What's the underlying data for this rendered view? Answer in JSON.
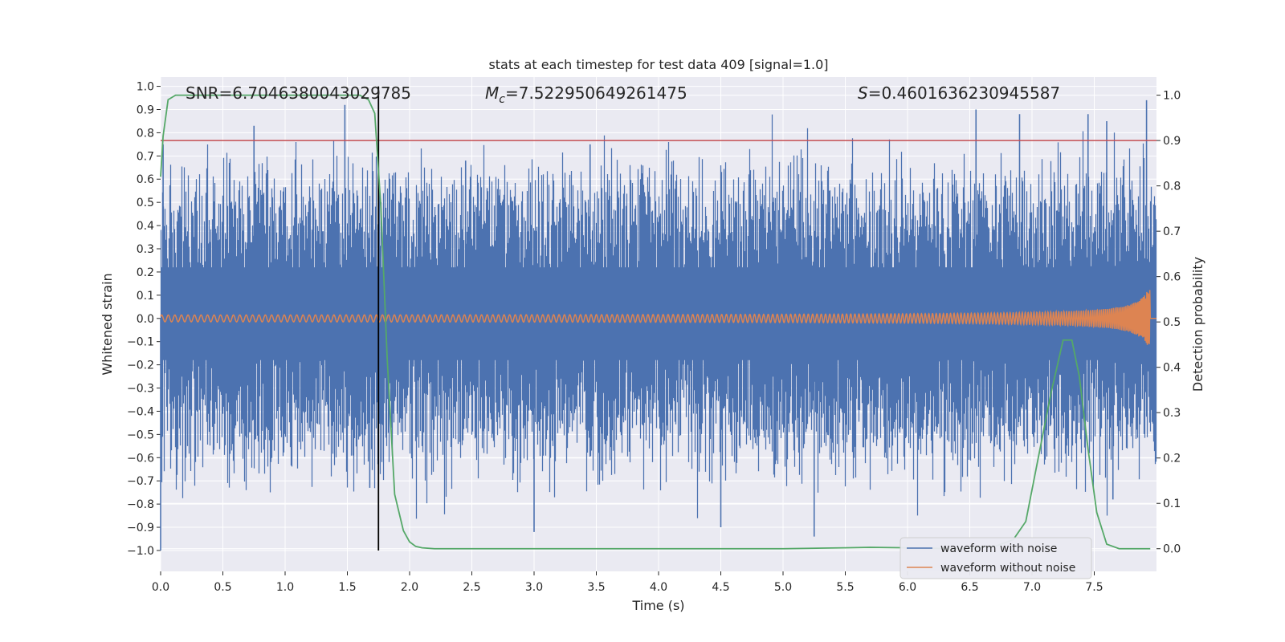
{
  "chart_data": {
    "type": "line",
    "title": "stats at each timestep for test data 409 [signal=1.0]",
    "xlabel": "Time (s)",
    "ylabel_left": "Whitened strain",
    "ylabel_right": "Detection probability",
    "xlim": [
      0.0,
      8.0
    ],
    "ylim_left": [
      -1.09,
      1.04
    ],
    "ylim_right": [
      -0.05,
      1.04
    ],
    "x_ticks": [
      "0.0",
      "0.5",
      "1.0",
      "1.5",
      "2.0",
      "2.5",
      "3.0",
      "3.5",
      "4.0",
      "4.5",
      "5.0",
      "5.5",
      "6.0",
      "6.5",
      "7.0",
      "7.5"
    ],
    "y_left_ticks": [
      "1.0",
      "0.9",
      "0.8",
      "0.7",
      "0.6",
      "0.5",
      "0.4",
      "0.3",
      "0.2",
      "0.1",
      "0.0",
      "−0.1",
      "−0.2",
      "−0.3",
      "−0.4",
      "−0.5",
      "−0.6",
      "−0.7",
      "−0.8",
      "−0.9",
      "−1.0"
    ],
    "y_right_ticks": [
      "1.0",
      "0.9",
      "0.8",
      "0.7",
      "0.6",
      "0.5",
      "0.4",
      "0.3",
      "0.2",
      "0.1",
      "0.0"
    ],
    "annotations": {
      "snr": "SNR=6.7046380043029785",
      "mc_label": "M",
      "mc_sub": "c",
      "mc_value": "=7.522950649261475",
      "s_label": "S",
      "s_value": "=0.4601636230945587"
    },
    "threshold": {
      "value": 0.9,
      "axis": "right",
      "color": "#c44e52"
    },
    "marker_time": 1.75,
    "series": [
      {
        "name": "waveform with noise",
        "color": "#4c72b0",
        "axis": "left",
        "envelope": {
          "typical_upper": 0.45,
          "typical_lower": -0.45,
          "max": 0.94,
          "min": -1.0
        },
        "spikes": [
          [
            0.0,
            -1.0
          ],
          [
            0.02,
            0.75
          ],
          [
            0.75,
            0.83
          ],
          [
            1.48,
            0.92
          ],
          [
            1.68,
            -0.73
          ],
          [
            2.45,
            0.68
          ],
          [
            3.0,
            -0.92
          ],
          [
            3.45,
            0.75
          ],
          [
            4.5,
            -0.9
          ],
          [
            5.25,
            -0.94
          ],
          [
            6.55,
            0.9
          ],
          [
            6.9,
            0.88
          ],
          [
            7.45,
            0.88
          ],
          [
            7.92,
            0.94
          ],
          [
            7.65,
            -0.78
          ],
          [
            7.6,
            0.85
          ]
        ]
      },
      {
        "name": "waveform without noise",
        "color": "#dd8452",
        "axis": "left",
        "start_amplitude": 0.012,
        "end_amplitude": 0.15,
        "end_time": 7.95
      },
      {
        "name": "detection probability",
        "color": "#55a868",
        "axis": "right",
        "x": [
          0.0,
          0.02,
          0.06,
          0.12,
          0.3,
          1.0,
          1.6,
          1.67,
          1.72,
          1.77,
          1.82,
          1.88,
          1.95,
          2.0,
          2.05,
          2.1,
          2.2,
          3.0,
          4.0,
          5.0,
          5.5,
          5.7,
          6.0,
          6.4,
          6.7,
          6.85,
          6.95,
          7.05,
          7.15,
          7.25,
          7.32,
          7.38,
          7.45,
          7.52,
          7.6,
          7.7,
          7.95
        ],
        "y": [
          0.82,
          0.91,
          0.99,
          1.0,
          1.0,
          1.0,
          1.0,
          0.99,
          0.96,
          0.75,
          0.42,
          0.12,
          0.04,
          0.015,
          0.005,
          0.002,
          0.0,
          0.0,
          0.0,
          0.0,
          0.002,
          0.003,
          0.002,
          0.0,
          0.005,
          0.02,
          0.06,
          0.2,
          0.34,
          0.46,
          0.46,
          0.38,
          0.22,
          0.08,
          0.01,
          0.0,
          0.0
        ]
      }
    ],
    "legend": {
      "placement": "lower-right",
      "entries": [
        "waveform with noise",
        "waveform without noise"
      ]
    }
  }
}
